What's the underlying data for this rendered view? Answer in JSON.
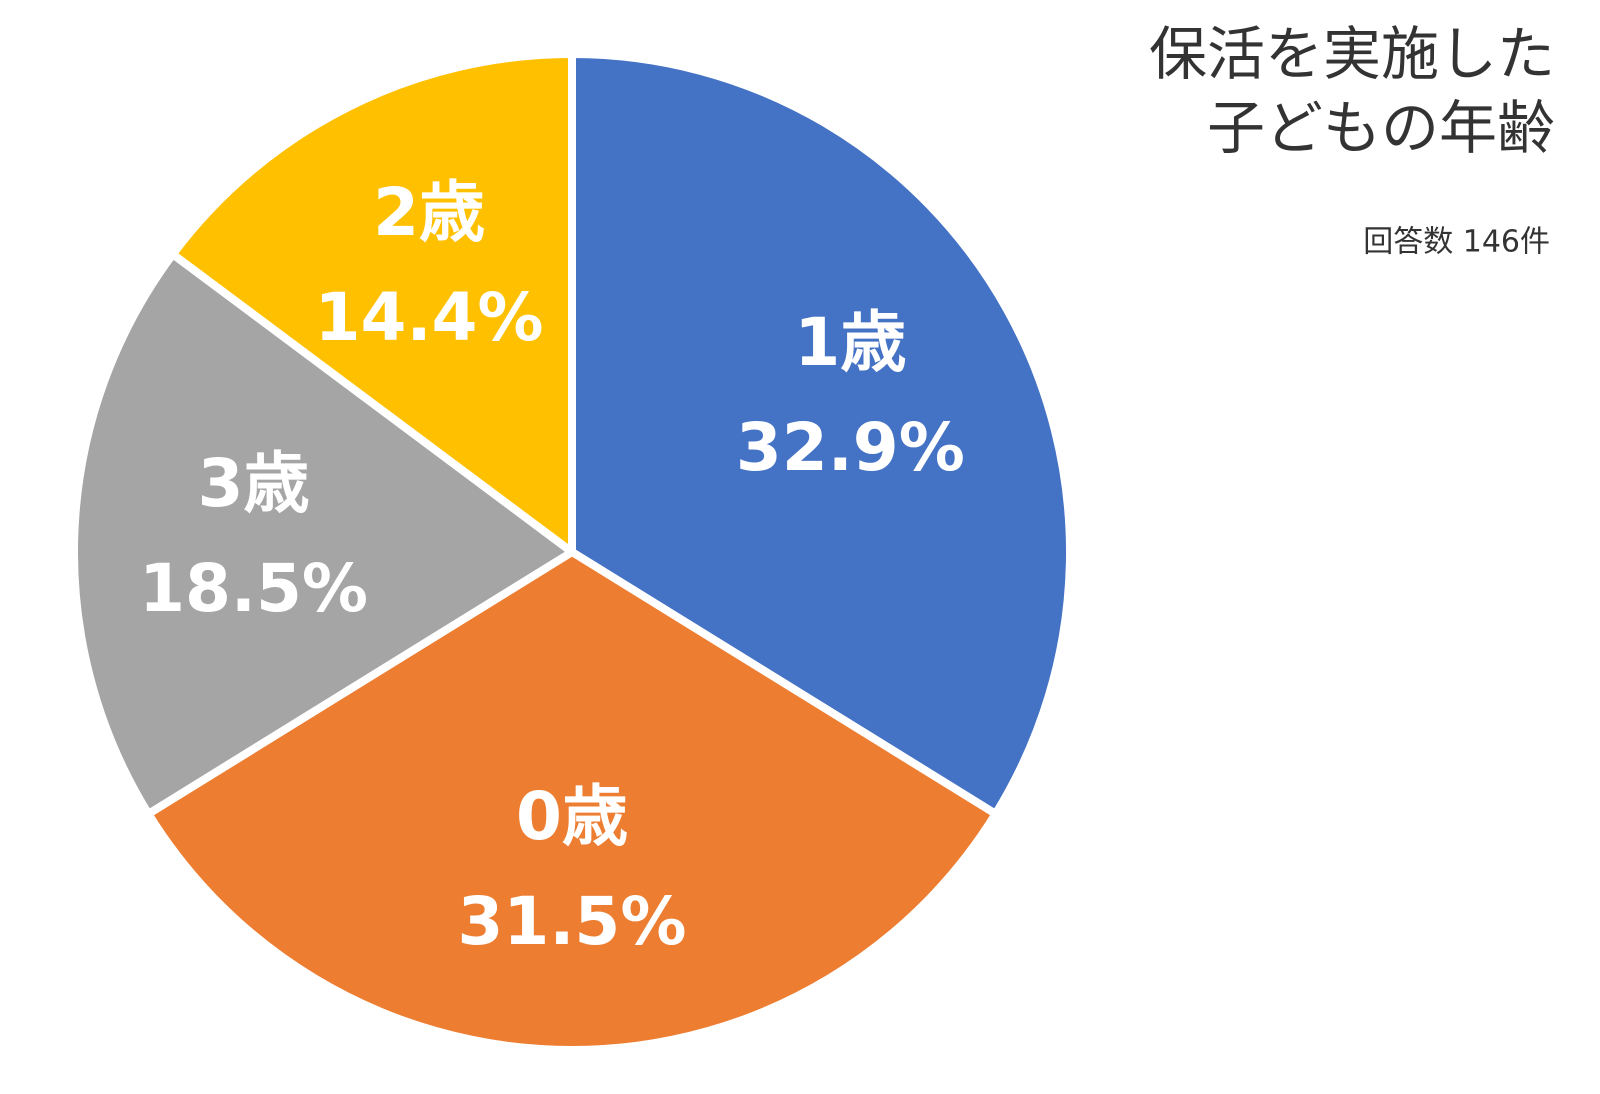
{
  "chart_data": {
    "type": "pie",
    "title": [
      "保活を実施した",
      "子どもの年齢"
    ],
    "subtitle": "回答数 146件",
    "categories": [
      "1歳",
      "0歳",
      "3歳",
      "2歳"
    ],
    "values": [
      32.9,
      31.5,
      18.5,
      14.4
    ],
    "value_labels": [
      "32.9%",
      "31.5%",
      "18.5%",
      "14.4%"
    ],
    "colors": [
      "#4472c4",
      "#ed7d31",
      "#a5a5a5",
      "#ffc000"
    ]
  }
}
